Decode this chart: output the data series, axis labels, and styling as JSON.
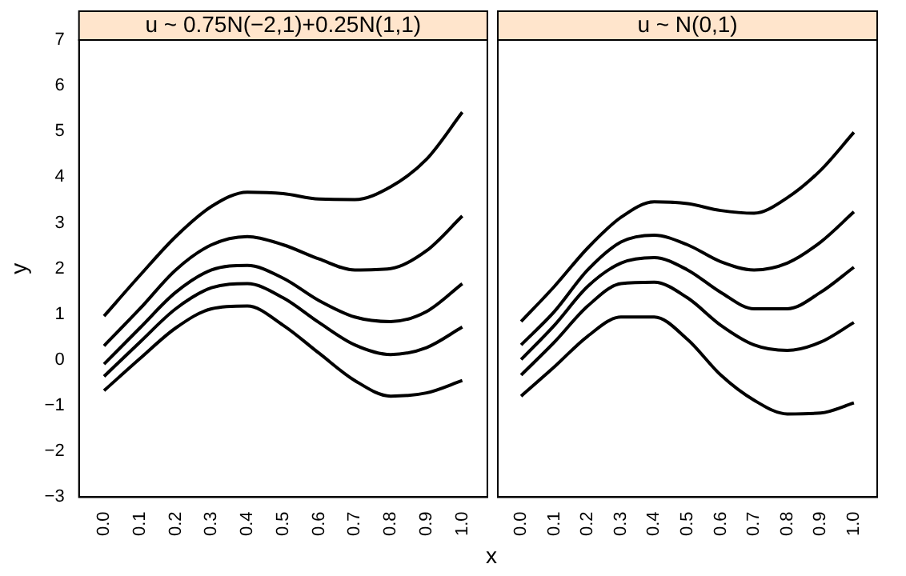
{
  "chart_data": [
    {
      "type": "line",
      "title": "u ~ 0.75N(−2,1)+0.25N(1,1)",
      "ylabel": "y",
      "xlabel": "x",
      "x": [
        0,
        0.1,
        0.2,
        0.3,
        0.4,
        0.5,
        0.6,
        0.7,
        0.8,
        0.9,
        1.0
      ],
      "series": [
        {
          "color": "#000000",
          "values": [
            0.96,
            1.85,
            2.7,
            3.36,
            3.67,
            3.64,
            3.52,
            3.51,
            3.79,
            4.39,
            5.42
          ]
        },
        {
          "color": "#000000",
          "values": [
            0.31,
            1.12,
            1.97,
            2.52,
            2.7,
            2.52,
            2.21,
            1.97,
            2.0,
            2.39,
            3.15
          ]
        },
        {
          "color": "#000000",
          "values": [
            -0.09,
            0.7,
            1.48,
            1.97,
            2.07,
            1.79,
            1.3,
            0.94,
            0.84,
            1.06,
            1.67
          ]
        },
        {
          "color": "#000000",
          "values": [
            -0.36,
            0.39,
            1.12,
            1.58,
            1.67,
            1.36,
            0.82,
            0.33,
            0.12,
            0.27,
            0.72
          ]
        },
        {
          "color": "#000000",
          "values": [
            -0.67,
            0.03,
            0.7,
            1.12,
            1.18,
            0.76,
            0.15,
            -0.45,
            -0.79,
            -0.72,
            -0.45
          ]
        }
      ],
      "xlim": [
        -0.07,
        1.07
      ],
      "ylim": [
        -3,
        7
      ],
      "xticks": [
        {
          "value": 0,
          "label": "0.0"
        },
        {
          "value": 0.1,
          "label": "0.1"
        },
        {
          "value": 0.2,
          "label": "0.2"
        },
        {
          "value": 0.3,
          "label": "0.3"
        },
        {
          "value": 0.4,
          "label": "0.4"
        },
        {
          "value": 0.5,
          "label": "0.5"
        },
        {
          "value": 0.6,
          "label": "0.6"
        },
        {
          "value": 0.7,
          "label": "0.7"
        },
        {
          "value": 0.8,
          "label": "0.8"
        },
        {
          "value": 0.9,
          "label": "0.9"
        },
        {
          "value": 1,
          "label": "1.0"
        }
      ],
      "yticks": [
        {
          "value": -3,
          "label": "−3"
        },
        {
          "value": -2,
          "label": "−2"
        },
        {
          "value": -1,
          "label": "−1"
        },
        0,
        1,
        2,
        3,
        4,
        5,
        6,
        7
      ],
      "grid": false,
      "legend": false,
      "marker": "none",
      "line_style": "solid"
    },
    {
      "type": "line",
      "title": "u ~ N(0,1)",
      "x": [
        0,
        0.1,
        0.2,
        0.3,
        0.4,
        0.5,
        0.6,
        0.7,
        0.8,
        0.9,
        1.0
      ],
      "series": [
        {
          "color": "#000000",
          "values": [
            0.84,
            1.61,
            2.45,
            3.12,
            3.46,
            3.42,
            3.27,
            3.21,
            3.55,
            4.15,
            4.98
          ]
        },
        {
          "color": "#000000",
          "values": [
            0.33,
            1.06,
            1.97,
            2.58,
            2.73,
            2.52,
            2.15,
            1.97,
            2.12,
            2.58,
            3.24
          ]
        },
        {
          "color": "#000000",
          "values": [
            0.01,
            0.76,
            1.61,
            2.12,
            2.24,
            1.97,
            1.48,
            1.12,
            1.12,
            1.48,
            2.03
          ]
        },
        {
          "color": "#000000",
          "values": [
            -0.33,
            0.39,
            1.18,
            1.67,
            1.7,
            1.36,
            0.76,
            0.33,
            0.21,
            0.39,
            0.82
          ]
        },
        {
          "color": "#000000",
          "values": [
            -0.79,
            -0.15,
            0.52,
            0.94,
            0.94,
            0.45,
            -0.33,
            -0.88,
            -1.18,
            -1.16,
            -0.94
          ]
        }
      ],
      "xlim": [
        -0.07,
        1.07
      ],
      "ylim": [
        -3,
        7
      ],
      "xticks": [
        {
          "value": 0,
          "label": "0.0"
        },
        {
          "value": 0.1,
          "label": "0.1"
        },
        {
          "value": 0.2,
          "label": "0.2"
        },
        {
          "value": 0.3,
          "label": "0.3"
        },
        {
          "value": 0.4,
          "label": "0.4"
        },
        {
          "value": 0.5,
          "label": "0.5"
        },
        {
          "value": 0.6,
          "label": "0.6"
        },
        {
          "value": 0.7,
          "label": "0.7"
        },
        {
          "value": 0.8,
          "label": "0.8"
        },
        {
          "value": 0.9,
          "label": "0.9"
        },
        {
          "value": 1,
          "label": "1.0"
        }
      ],
      "tick_labels": "x",
      "grid": false,
      "legend": false,
      "marker": "none",
      "line_style": "solid"
    }
  ]
}
